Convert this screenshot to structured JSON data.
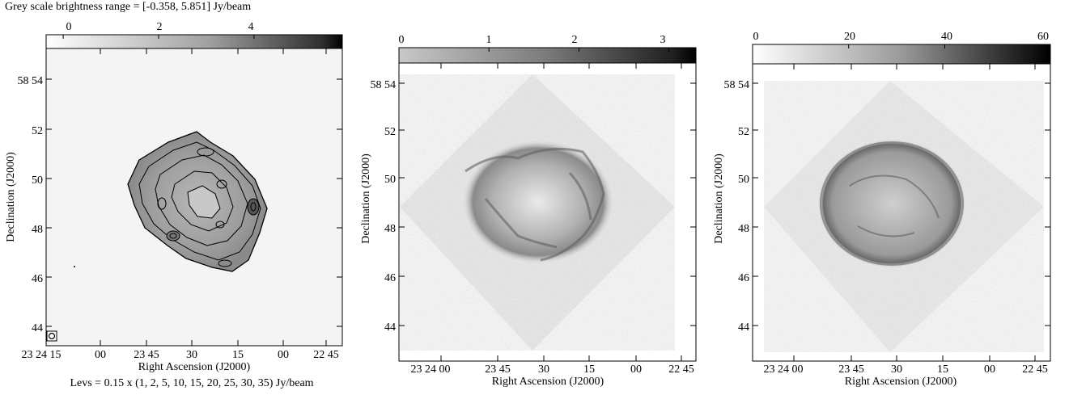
{
  "header": {
    "title": "Grey scale brightness range = [-0.358, 5.851] Jy/beam",
    "footnote": "Levs = 0.15 x (1, 2, 5, 10, 15, 20, 25, 30, 35) Jy/beam"
  },
  "panels": [
    {
      "id": "radio",
      "colorbar": {
        "min": -0.358,
        "max": 5.851,
        "tick_values": [
          0,
          2,
          4
        ],
        "tick_labels": [
          "0",
          "2",
          "4"
        ]
      },
      "ylabel": "Declination (J2000)",
      "xlabel": "Right Ascension (J2000)",
      "y_ticks": [
        "58 54",
        "52",
        "50",
        "48",
        "46",
        "44"
      ],
      "x_ticks": [
        "23 24 15",
        "00",
        "23 45",
        "30",
        "15",
        "00",
        "22 45"
      ],
      "has_contours": true
    },
    {
      "id": "xray-1",
      "colorbar": {
        "min": 0,
        "max": 3.3,
        "tick_values": [
          0,
          1,
          2,
          3
        ],
        "tick_labels": [
          "0",
          "1",
          "2",
          "3"
        ]
      },
      "ylabel": "Declination (J2000)",
      "xlabel": "Right Ascension (J2000)",
      "y_ticks": [
        "58 54",
        "52",
        "50",
        "48",
        "46",
        "44"
      ],
      "x_ticks": [
        "23 24 00",
        "23 45",
        "30",
        "15",
        "00",
        "22 45"
      ],
      "has_contours": false
    },
    {
      "id": "xray-2",
      "colorbar": {
        "min": 0,
        "max": 62,
        "tick_values": [
          0,
          20,
          40,
          60
        ],
        "tick_labels": [
          "0",
          "20",
          "40",
          "60"
        ]
      },
      "ylabel": "Declination (J2000)",
      "xlabel": "Right Ascension (J2000)",
      "y_ticks": [
        "58 54",
        "52",
        "50",
        "48",
        "46",
        "44"
      ],
      "x_ticks": [
        "23 24 00",
        "23 45",
        "30",
        "15",
        "00",
        "22 45"
      ],
      "has_contours": false
    }
  ]
}
